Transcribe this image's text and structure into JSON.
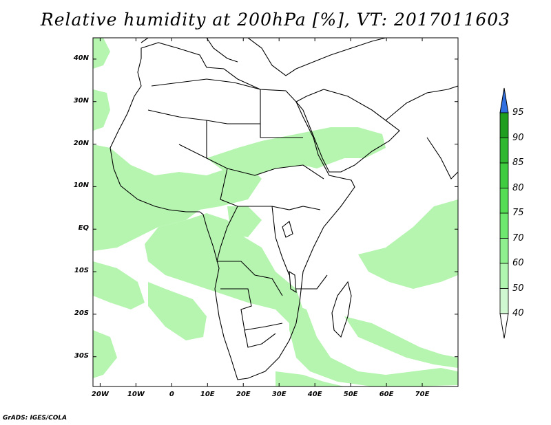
{
  "title": "Relative humidity at 200hPa [%], VT: 2017011603",
  "credit": "GrADS: IGES/COLA",
  "map": {
    "lon_range": [
      -22,
      80
    ],
    "lat_range": [
      -37,
      45
    ],
    "lat_ticks": [
      {
        "value": 40,
        "label": "40N"
      },
      {
        "value": 30,
        "label": "30N"
      },
      {
        "value": 20,
        "label": "20N"
      },
      {
        "value": 10,
        "label": "10N"
      },
      {
        "value": 0,
        "label": "EQ"
      },
      {
        "value": -10,
        "label": "10S"
      },
      {
        "value": -20,
        "label": "20S"
      },
      {
        "value": -30,
        "label": "30S"
      }
    ],
    "lon_ticks": [
      {
        "value": -20,
        "label": "20W"
      },
      {
        "value": -10,
        "label": "10W"
      },
      {
        "value": 0,
        "label": "0"
      },
      {
        "value": 10,
        "label": "10E"
      },
      {
        "value": 20,
        "label": "20E"
      },
      {
        "value": 30,
        "label": "30E"
      },
      {
        "value": 40,
        "label": "40E"
      },
      {
        "value": 50,
        "label": "50E"
      },
      {
        "value": 60,
        "label": "60E"
      },
      {
        "value": 70,
        "label": "70E"
      }
    ]
  },
  "colorbar": {
    "levels": [
      "95",
      "90",
      "85",
      "80",
      "75",
      "70",
      "60",
      "50",
      "40"
    ],
    "colors": [
      "#1f9e1f",
      "#30b830",
      "#40cc40",
      "#55dd55",
      "#6fe86f",
      "#8ef08e",
      "#b0f5b0",
      "#d0f8d0",
      "#ecfcec"
    ],
    "over_color": "#2f6fe0",
    "under_color": "#ffffff"
  },
  "colors": {
    "humidity_fill": "#b6f5b0",
    "coast": "#000000"
  }
}
